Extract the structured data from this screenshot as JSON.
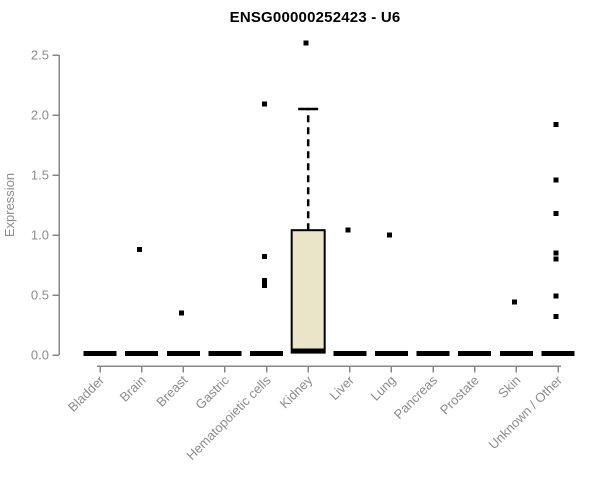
{
  "chart_data": {
    "type": "boxplot",
    "title": "ENSG00000252423 - U6",
    "xlabel": "",
    "ylabel": "Expression",
    "ylim": [
      0,
      2.65
    ],
    "yticks": [
      0.0,
      0.5,
      1.0,
      1.5,
      2.0,
      2.5
    ],
    "ytick_labels": [
      "0.0",
      "0.5",
      "1.0",
      "1.5",
      "2.0",
      "2.5"
    ],
    "grid": false,
    "legend": "none",
    "categories": [
      "Bladder",
      "Brain",
      "Breast",
      "Gastric",
      "Hematopoietic cells",
      "Kidney",
      "Liver",
      "Lung",
      "Pancreas",
      "Prostate",
      "Skin",
      "Unknown / Other"
    ],
    "series": [
      {
        "category": "Bladder",
        "median": 0,
        "q1": 0,
        "q3": 0,
        "points": []
      },
      {
        "category": "Brain",
        "median": 0,
        "q1": 0,
        "q3": 0,
        "points": [
          0.88
        ]
      },
      {
        "category": "Breast",
        "median": 0,
        "q1": 0,
        "q3": 0,
        "points": [
          0.35
        ]
      },
      {
        "category": "Gastric",
        "median": 0,
        "q1": 0,
        "q3": 0,
        "points": []
      },
      {
        "category": "Hematopoietic cells",
        "median": 0,
        "q1": 0,
        "q3": 0,
        "points": [
          2.09,
          0.82,
          0.62,
          0.58
        ]
      },
      {
        "category": "Kidney",
        "median": 0.02,
        "q1": 0.02,
        "q3": 1.04,
        "whisker_high": 2.05,
        "points": [
          2.6
        ]
      },
      {
        "category": "Liver",
        "median": 0,
        "q1": 0,
        "q3": 0,
        "points": [
          1.04
        ]
      },
      {
        "category": "Lung",
        "median": 0,
        "q1": 0,
        "q3": 0,
        "points": [
          1.0
        ]
      },
      {
        "category": "Pancreas",
        "median": 0,
        "q1": 0,
        "q3": 0,
        "points": []
      },
      {
        "category": "Prostate",
        "median": 0,
        "q1": 0,
        "q3": 0,
        "points": []
      },
      {
        "category": "Skin",
        "median": 0,
        "q1": 0,
        "q3": 0,
        "points": [
          0.44
        ]
      },
      {
        "category": "Unknown / Other",
        "median": 0,
        "q1": 0,
        "q3": 0,
        "points": [
          1.92,
          1.46,
          1.18,
          0.85,
          0.8,
          0.49,
          0.32
        ]
      }
    ],
    "colors": {
      "background": "#ffffff",
      "box_fill": "#EAE4C9",
      "box_stroke": "#000000",
      "median": "#000000",
      "point": "#000000",
      "whisker": "#000000",
      "axis": "#878787",
      "tick_label": "#8c8c8c",
      "title": "#000000"
    }
  }
}
